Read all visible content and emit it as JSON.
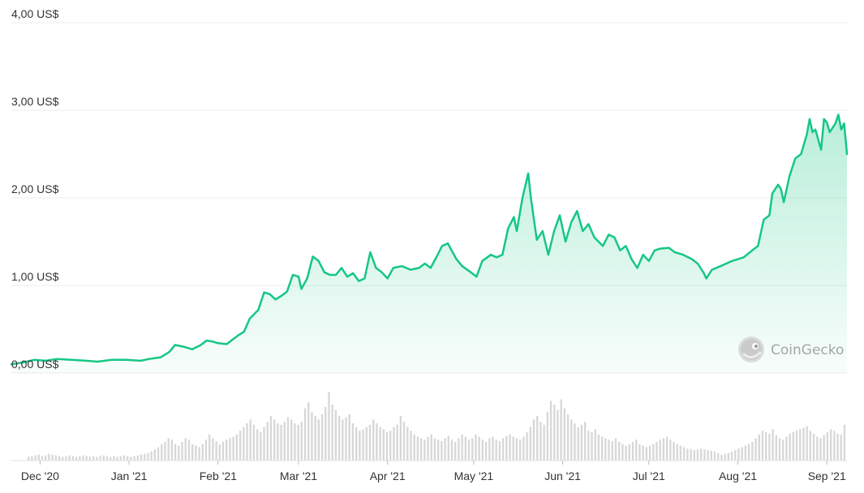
{
  "chart_data": {
    "type": "area",
    "title": "",
    "xlabel": "",
    "ylabel": "",
    "ylim": [
      0,
      4
    ],
    "grid": true,
    "y_ticks": [
      "0,00 US$",
      "1,00 US$",
      "2,00 US$",
      "3,00 US$",
      "4,00 US$"
    ],
    "y_tick_values": [
      0,
      1,
      2,
      3,
      4
    ],
    "x_ticks": [
      "Dec '20",
      "Jan '21",
      "Feb '21",
      "Mar '21",
      "Apr '21",
      "May '21",
      "Jun '21",
      "Jul '21",
      "Aug '21",
      "Sep '21"
    ],
    "x_tick_dates": [
      "2020-12-01",
      "2021-01-01",
      "2021-02-01",
      "2021-03-01",
      "2021-04-01",
      "2021-05-01",
      "2021-06-01",
      "2021-07-01",
      "2021-08-01",
      "2021-09-01"
    ],
    "x_range": [
      "2020-11-21",
      "2021-09-08"
    ],
    "series": [
      {
        "color": "#16c784",
        "points": [
          [
            "2020-11-21",
            0.1
          ],
          [
            "2020-11-25",
            0.12
          ],
          [
            "2020-11-29",
            0.15
          ],
          [
            "2020-12-03",
            0.14
          ],
          [
            "2020-12-07",
            0.16
          ],
          [
            "2020-12-12",
            0.15
          ],
          [
            "2020-12-17",
            0.14
          ],
          [
            "2020-12-21",
            0.13
          ],
          [
            "2020-12-26",
            0.15
          ],
          [
            "2020-12-31",
            0.15
          ],
          [
            "2021-01-05",
            0.14
          ],
          [
            "2021-01-08",
            0.16
          ],
          [
            "2021-01-12",
            0.18
          ],
          [
            "2021-01-15",
            0.24
          ],
          [
            "2021-01-17",
            0.32
          ],
          [
            "2021-01-20",
            0.3
          ],
          [
            "2021-01-23",
            0.27
          ],
          [
            "2021-01-26",
            0.32
          ],
          [
            "2021-01-28",
            0.37
          ],
          [
            "2021-01-30",
            0.36
          ],
          [
            "2021-02-01",
            0.34
          ],
          [
            "2021-02-04",
            0.33
          ],
          [
            "2021-02-06",
            0.38
          ],
          [
            "2021-02-08",
            0.43
          ],
          [
            "2021-02-10",
            0.47
          ],
          [
            "2021-02-12",
            0.62
          ],
          [
            "2021-02-15",
            0.72
          ],
          [
            "2021-02-17",
            0.92
          ],
          [
            "2021-02-19",
            0.9
          ],
          [
            "2021-02-21",
            0.84
          ],
          [
            "2021-02-23",
            0.88
          ],
          [
            "2021-02-25",
            0.93
          ],
          [
            "2021-02-27",
            1.12
          ],
          [
            "2021-03-01",
            1.1
          ],
          [
            "2021-03-02",
            0.96
          ],
          [
            "2021-03-04",
            1.08
          ],
          [
            "2021-03-06",
            1.33
          ],
          [
            "2021-03-08",
            1.28
          ],
          [
            "2021-03-10",
            1.15
          ],
          [
            "2021-03-12",
            1.12
          ],
          [
            "2021-03-14",
            1.12
          ],
          [
            "2021-03-16",
            1.2
          ],
          [
            "2021-03-18",
            1.1
          ],
          [
            "2021-03-20",
            1.14
          ],
          [
            "2021-03-22",
            1.05
          ],
          [
            "2021-03-24",
            1.08
          ],
          [
            "2021-03-26",
            1.38
          ],
          [
            "2021-03-28",
            1.2
          ],
          [
            "2021-03-30",
            1.15
          ],
          [
            "2021-04-01",
            1.08
          ],
          [
            "2021-04-03",
            1.2
          ],
          [
            "2021-04-06",
            1.22
          ],
          [
            "2021-04-09",
            1.18
          ],
          [
            "2021-04-12",
            1.2
          ],
          [
            "2021-04-14",
            1.25
          ],
          [
            "2021-04-16",
            1.2
          ],
          [
            "2021-04-18",
            1.32
          ],
          [
            "2021-04-20",
            1.45
          ],
          [
            "2021-04-22",
            1.48
          ],
          [
            "2021-04-25",
            1.3
          ],
          [
            "2021-04-27",
            1.22
          ],
          [
            "2021-04-30",
            1.15
          ],
          [
            "2021-05-02",
            1.1
          ],
          [
            "2021-05-04",
            1.28
          ],
          [
            "2021-05-07",
            1.35
          ],
          [
            "2021-05-09",
            1.32
          ],
          [
            "2021-05-11",
            1.35
          ],
          [
            "2021-05-13",
            1.65
          ],
          [
            "2021-05-15",
            1.78
          ],
          [
            "2021-05-16",
            1.62
          ],
          [
            "2021-05-18",
            2.0
          ],
          [
            "2021-05-20",
            2.28
          ],
          [
            "2021-05-21",
            1.98
          ],
          [
            "2021-05-23",
            1.52
          ],
          [
            "2021-05-25",
            1.62
          ],
          [
            "2021-05-27",
            1.35
          ],
          [
            "2021-05-29",
            1.62
          ],
          [
            "2021-05-31",
            1.8
          ],
          [
            "2021-06-02",
            1.5
          ],
          [
            "2021-06-04",
            1.72
          ],
          [
            "2021-06-06",
            1.85
          ],
          [
            "2021-06-08",
            1.62
          ],
          [
            "2021-06-10",
            1.7
          ],
          [
            "2021-06-12",
            1.55
          ],
          [
            "2021-06-15",
            1.45
          ],
          [
            "2021-06-17",
            1.58
          ],
          [
            "2021-06-19",
            1.55
          ],
          [
            "2021-06-21",
            1.4
          ],
          [
            "2021-06-23",
            1.45
          ],
          [
            "2021-06-25",
            1.3
          ],
          [
            "2021-06-27",
            1.2
          ],
          [
            "2021-06-29",
            1.35
          ],
          [
            "2021-07-01",
            1.28
          ],
          [
            "2021-07-03",
            1.4
          ],
          [
            "2021-07-05",
            1.42
          ],
          [
            "2021-07-08",
            1.43
          ],
          [
            "2021-07-10",
            1.38
          ],
          [
            "2021-07-13",
            1.35
          ],
          [
            "2021-07-16",
            1.3
          ],
          [
            "2021-07-18",
            1.25
          ],
          [
            "2021-07-20",
            1.15
          ],
          [
            "2021-07-21",
            1.08
          ],
          [
            "2021-07-23",
            1.18
          ],
          [
            "2021-07-26",
            1.22
          ],
          [
            "2021-07-30",
            1.28
          ],
          [
            "2021-08-03",
            1.32
          ],
          [
            "2021-08-06",
            1.4
          ],
          [
            "2021-08-08",
            1.45
          ],
          [
            "2021-08-10",
            1.75
          ],
          [
            "2021-08-12",
            1.8
          ],
          [
            "2021-08-13",
            2.05
          ],
          [
            "2021-08-15",
            2.15
          ],
          [
            "2021-08-16",
            2.1
          ],
          [
            "2021-08-17",
            1.95
          ],
          [
            "2021-08-19",
            2.25
          ],
          [
            "2021-08-21",
            2.45
          ],
          [
            "2021-08-23",
            2.5
          ],
          [
            "2021-08-25",
            2.72
          ],
          [
            "2021-08-26",
            2.9
          ],
          [
            "2021-08-27",
            2.75
          ],
          [
            "2021-08-28",
            2.78
          ],
          [
            "2021-08-30",
            2.55
          ],
          [
            "2021-08-31",
            2.9
          ],
          [
            "2021-09-01",
            2.86
          ],
          [
            "2021-09-02",
            2.75
          ],
          [
            "2021-09-04",
            2.85
          ],
          [
            "2021-09-05",
            2.95
          ],
          [
            "2021-09-06",
            2.78
          ],
          [
            "2021-09-07",
            2.85
          ],
          [
            "2021-09-08",
            2.5
          ]
        ]
      }
    ],
    "volume": {
      "color": "#d7d7d7",
      "ylim": [
        0,
        1
      ],
      "relative_values": [
        0.05,
        0.06,
        0.07,
        0.08,
        0.06,
        0.07,
        0.09,
        0.08,
        0.07,
        0.06,
        0.05,
        0.06,
        0.07,
        0.06,
        0.05,
        0.06,
        0.07,
        0.06,
        0.05,
        0.06,
        0.05,
        0.06,
        0.07,
        0.06,
        0.05,
        0.06,
        0.05,
        0.06,
        0.07,
        0.06,
        0.05,
        0.06,
        0.07,
        0.08,
        0.09,
        0.1,
        0.12,
        0.15,
        0.18,
        0.22,
        0.25,
        0.3,
        0.28,
        0.22,
        0.2,
        0.25,
        0.3,
        0.28,
        0.22,
        0.2,
        0.18,
        0.22,
        0.28,
        0.35,
        0.3,
        0.26,
        0.22,
        0.25,
        0.28,
        0.3,
        0.32,
        0.35,
        0.4,
        0.45,
        0.5,
        0.55,
        0.48,
        0.42,
        0.38,
        0.45,
        0.52,
        0.6,
        0.55,
        0.5,
        0.48,
        0.52,
        0.58,
        0.55,
        0.5,
        0.48,
        0.52,
        0.7,
        0.78,
        0.65,
        0.6,
        0.55,
        0.62,
        0.72,
        0.92,
        0.75,
        0.68,
        0.6,
        0.55,
        0.58,
        0.62,
        0.5,
        0.45,
        0.4,
        0.42,
        0.45,
        0.48,
        0.55,
        0.5,
        0.45,
        0.42,
        0.38,
        0.4,
        0.45,
        0.48,
        0.6,
        0.52,
        0.45,
        0.4,
        0.35,
        0.32,
        0.3,
        0.28,
        0.32,
        0.35,
        0.3,
        0.28,
        0.26,
        0.3,
        0.33,
        0.28,
        0.25,
        0.3,
        0.35,
        0.32,
        0.28,
        0.3,
        0.35,
        0.32,
        0.28,
        0.25,
        0.3,
        0.32,
        0.28,
        0.26,
        0.3,
        0.33,
        0.35,
        0.32,
        0.3,
        0.28,
        0.32,
        0.38,
        0.45,
        0.55,
        0.6,
        0.52,
        0.48,
        0.65,
        0.8,
        0.75,
        0.68,
        0.82,
        0.7,
        0.62,
        0.55,
        0.5,
        0.45,
        0.48,
        0.52,
        0.4,
        0.38,
        0.42,
        0.35,
        0.32,
        0.3,
        0.28,
        0.26,
        0.3,
        0.25,
        0.22,
        0.2,
        0.22,
        0.25,
        0.28,
        0.22,
        0.2,
        0.18,
        0.2,
        0.22,
        0.25,
        0.28,
        0.3,
        0.32,
        0.28,
        0.25,
        0.22,
        0.2,
        0.18,
        0.16,
        0.15,
        0.14,
        0.15,
        0.16,
        0.15,
        0.14,
        0.13,
        0.12,
        0.1,
        0.08,
        0.09,
        0.1,
        0.12,
        0.14,
        0.16,
        0.18,
        0.2,
        0.22,
        0.25,
        0.3,
        0.35,
        0.4,
        0.38,
        0.36,
        0.42,
        0.34,
        0.3,
        0.28,
        0.32,
        0.36,
        0.38,
        0.4,
        0.42,
        0.44,
        0.46,
        0.4,
        0.36,
        0.32,
        0.3,
        0.34,
        0.38,
        0.42,
        0.4,
        0.36,
        0.35,
        0.48
      ]
    }
  },
  "watermark": {
    "text": "CoinGecko",
    "icon": "coingecko-logo-icon"
  }
}
